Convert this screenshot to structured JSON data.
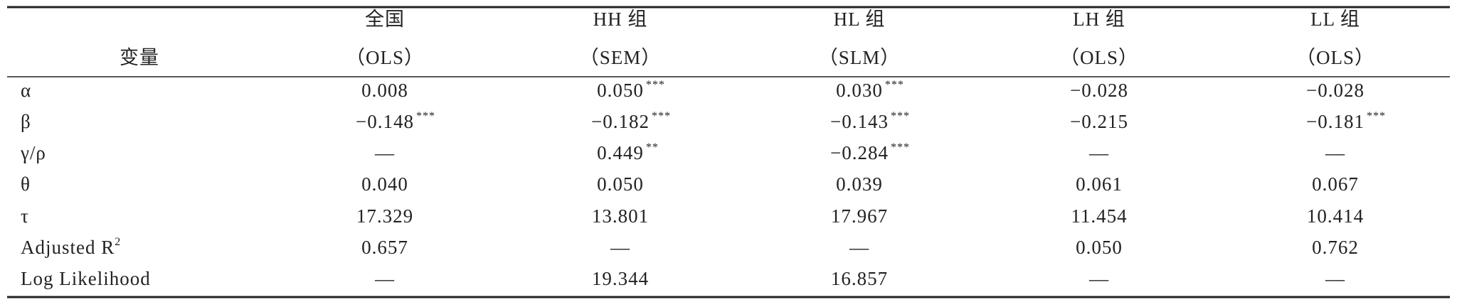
{
  "table": {
    "stub_header": "变量",
    "columns": [
      {
        "group": "全国",
        "model": "（OLS）"
      },
      {
        "group": "HH 组",
        "model": "（SEM）"
      },
      {
        "group": "HL 组",
        "model": "（SLM）"
      },
      {
        "group": "LH 组",
        "model": "（OLS）"
      },
      {
        "group": "LL 组",
        "model": "（OLS）"
      }
    ],
    "rows": [
      {
        "label": "α",
        "cells": [
          {
            "text": "0.008"
          },
          {
            "text": "0.050",
            "sup": "***"
          },
          {
            "text": "0.030",
            "sup": "***"
          },
          {
            "text": "−0.028"
          },
          {
            "text": "−0.028"
          }
        ]
      },
      {
        "label": "β",
        "cells": [
          {
            "text": "−0.148",
            "sup": "***"
          },
          {
            "text": "−0.182",
            "sup": "***"
          },
          {
            "text": "−0.143",
            "sup": "***"
          },
          {
            "text": "−0.215"
          },
          {
            "text": "−0.181",
            "sup": "***"
          }
        ]
      },
      {
        "label": "γ/ρ",
        "cells": [
          {
            "text": "—"
          },
          {
            "text": "0.449",
            "sup": "**"
          },
          {
            "text": "−0.284",
            "sup": "***"
          },
          {
            "text": "—"
          },
          {
            "text": "—"
          }
        ]
      },
      {
        "label": "θ",
        "cells": [
          {
            "text": "0.040"
          },
          {
            "text": "0.050"
          },
          {
            "text": "0.039"
          },
          {
            "text": "0.061"
          },
          {
            "text": "0.067"
          }
        ]
      },
      {
        "label": "τ",
        "cells": [
          {
            "text": "17.329"
          },
          {
            "text": "13.801"
          },
          {
            "text": "17.967"
          },
          {
            "text": "11.454"
          },
          {
            "text": "10.414"
          }
        ]
      },
      {
        "label": "Adjusted R",
        "label_sup": "2",
        "cells": [
          {
            "text": "0.657"
          },
          {
            "text": "—"
          },
          {
            "text": "—"
          },
          {
            "text": "0.050"
          },
          {
            "text": "0.762"
          }
        ]
      },
      {
        "label": "Log Likelihood",
        "cells": [
          {
            "text": "—"
          },
          {
            "text": "19.344"
          },
          {
            "text": "16.857"
          },
          {
            "text": "—"
          },
          {
            "text": "—"
          }
        ]
      }
    ]
  }
}
